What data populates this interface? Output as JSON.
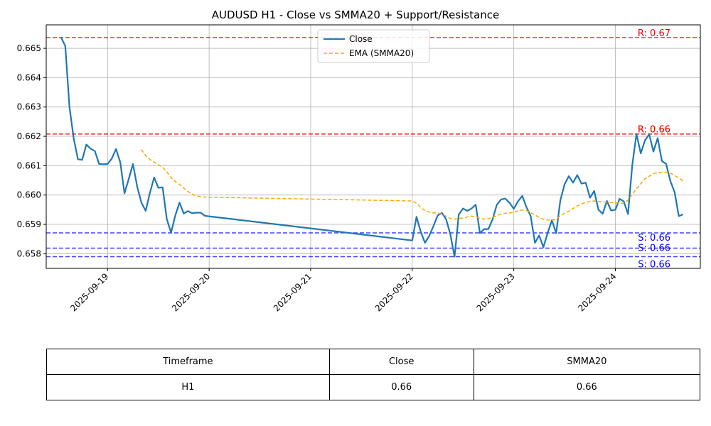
{
  "chart_data": {
    "type": "line",
    "title": "AUDUSD H1 - Close vs SMMA20 + Support/Resistance",
    "xlabel": "",
    "ylabel": "",
    "ylim": [
      0.6575,
      0.6658
    ],
    "x_ticks": [
      "2025-09-19",
      "2025-09-20",
      "2025-09-21",
      "2025-09-22",
      "2025-09-23",
      "2025-09-24"
    ],
    "y_ticks": [
      "0.658",
      "0.659",
      "0.660",
      "0.661",
      "0.662",
      "0.663",
      "0.664",
      "0.665"
    ],
    "grid": true,
    "legend_position": "upper-center",
    "series": [
      {
        "name": "Close",
        "color": "#1f77b4",
        "style": "solid",
        "x": [
          "2025-09-18 13:00",
          "2025-09-18 14:00",
          "2025-09-18 15:00",
          "2025-09-18 16:00",
          "2025-09-18 17:00",
          "2025-09-18 18:00",
          "2025-09-18 19:00",
          "2025-09-18 20:00",
          "2025-09-18 21:00",
          "2025-09-18 22:00",
          "2025-09-18 23:00",
          "2025-09-19 00:00",
          "2025-09-19 01:00",
          "2025-09-19 02:00",
          "2025-09-19 03:00",
          "2025-09-19 04:00",
          "2025-09-19 05:00",
          "2025-09-19 06:00",
          "2025-09-19 07:00",
          "2025-09-19 08:00",
          "2025-09-19 09:00",
          "2025-09-19 10:00",
          "2025-09-19 11:00",
          "2025-09-19 12:00",
          "2025-09-19 13:00",
          "2025-09-19 14:00",
          "2025-09-19 15:00",
          "2025-09-19 16:00",
          "2025-09-19 17:00",
          "2025-09-19 18:00",
          "2025-09-19 19:00",
          "2025-09-19 20:00",
          "2025-09-19 21:00",
          "2025-09-19 22:00",
          "2025-09-19 23:00",
          "2025-09-22 00:00",
          "2025-09-22 01:00",
          "2025-09-22 02:00",
          "2025-09-22 03:00",
          "2025-09-22 04:00",
          "2025-09-22 05:00",
          "2025-09-22 06:00",
          "2025-09-22 07:00",
          "2025-09-22 08:00",
          "2025-09-22 09:00",
          "2025-09-22 10:00",
          "2025-09-22 11:00",
          "2025-09-22 12:00",
          "2025-09-22 13:00",
          "2025-09-22 14:00",
          "2025-09-22 15:00",
          "2025-09-22 16:00",
          "2025-09-22 17:00",
          "2025-09-22 18:00",
          "2025-09-22 19:00",
          "2025-09-22 20:00",
          "2025-09-22 21:00",
          "2025-09-22 22:00",
          "2025-09-22 23:00",
          "2025-09-23 00:00",
          "2025-09-23 01:00",
          "2025-09-23 02:00",
          "2025-09-23 03:00",
          "2025-09-23 04:00",
          "2025-09-23 05:00",
          "2025-09-23 06:00",
          "2025-09-23 07:00",
          "2025-09-23 08:00",
          "2025-09-23 09:00",
          "2025-09-23 10:00",
          "2025-09-23 11:00",
          "2025-09-23 12:00",
          "2025-09-23 13:00",
          "2025-09-23 14:00",
          "2025-09-23 15:00",
          "2025-09-23 16:00",
          "2025-09-23 17:00",
          "2025-09-23 18:00",
          "2025-09-23 19:00",
          "2025-09-23 20:00",
          "2025-09-23 21:00",
          "2025-09-23 22:00",
          "2025-09-23 23:00",
          "2025-09-24 00:00",
          "2025-09-24 01:00",
          "2025-09-24 02:00",
          "2025-09-24 03:00",
          "2025-09-24 04:00",
          "2025-09-24 05:00",
          "2025-09-24 06:00",
          "2025-09-24 07:00",
          "2025-09-24 08:00",
          "2025-09-24 09:00",
          "2025-09-24 10:00",
          "2025-09-24 11:00",
          "2025-09-24 12:00",
          "2025-09-24 13:00",
          "2025-09-24 14:00",
          "2025-09-24 15:00",
          "2025-09-24 16:00"
        ],
        "values": [
          0.66538,
          0.66508,
          0.663,
          0.66192,
          0.66122,
          0.6612,
          0.66172,
          0.66158,
          0.6615,
          0.66106,
          0.66105,
          0.66106,
          0.66124,
          0.66157,
          0.66111,
          0.66006,
          0.66055,
          0.66106,
          0.66028,
          0.65974,
          0.65946,
          0.66007,
          0.6606,
          0.66025,
          0.66026,
          0.65918,
          0.65872,
          0.6593,
          0.65974,
          0.65937,
          0.65945,
          0.65938,
          0.6594,
          0.6594,
          0.65929,
          0.65845,
          0.65926,
          0.65875,
          0.65837,
          0.6586,
          0.65894,
          0.6593,
          0.65939,
          0.65918,
          0.65866,
          0.6579,
          0.65934,
          0.65954,
          0.65946,
          0.65954,
          0.65967,
          0.6587,
          0.65884,
          0.65884,
          0.65918,
          0.65967,
          0.65985,
          0.65988,
          0.65973,
          0.65953,
          0.65979,
          0.65997,
          0.65958,
          0.65928,
          0.65837,
          0.65862,
          0.65822,
          0.65871,
          0.65914,
          0.6587,
          0.65982,
          0.66037,
          0.66064,
          0.66042,
          0.66068,
          0.66039,
          0.66042,
          0.65991,
          0.66014,
          0.6595,
          0.65936,
          0.6598,
          0.65947,
          0.6595,
          0.65987,
          0.65978,
          0.65935,
          0.66103,
          0.66208,
          0.66142,
          0.66186,
          0.66207,
          0.66148,
          0.66194,
          0.66116,
          0.66106,
          0.66048,
          0.6601,
          0.65928,
          0.65934
        ]
      },
      {
        "name": "EMA (SMMA20)",
        "color": "#ffa500",
        "style": "dashed",
        "x": [
          "2025-09-19 08:00",
          "2025-09-19 09:00",
          "2025-09-19 10:00",
          "2025-09-19 11:00",
          "2025-09-19 12:00",
          "2025-09-19 13:00",
          "2025-09-19 14:00",
          "2025-09-19 15:00",
          "2025-09-19 16:00",
          "2025-09-19 17:00",
          "2025-09-19 18:00",
          "2025-09-19 19:00",
          "2025-09-19 20:00",
          "2025-09-19 21:00",
          "2025-09-19 22:00",
          "2025-09-19 23:00",
          "2025-09-22 00:00",
          "2025-09-22 01:00",
          "2025-09-22 02:00",
          "2025-09-22 03:00",
          "2025-09-22 04:00",
          "2025-09-22 05:00",
          "2025-09-22 06:00",
          "2025-09-22 07:00",
          "2025-09-22 08:00",
          "2025-09-22 09:00",
          "2025-09-22 10:00",
          "2025-09-22 11:00",
          "2025-09-22 12:00",
          "2025-09-22 13:00",
          "2025-09-22 14:00",
          "2025-09-22 15:00",
          "2025-09-22 16:00",
          "2025-09-22 17:00",
          "2025-09-22 18:00",
          "2025-09-22 19:00",
          "2025-09-22 20:00",
          "2025-09-22 21:00",
          "2025-09-22 22:00",
          "2025-09-22 23:00",
          "2025-09-23 00:00",
          "2025-09-23 01:00",
          "2025-09-23 02:00",
          "2025-09-23 03:00",
          "2025-09-23 04:00",
          "2025-09-23 05:00",
          "2025-09-23 06:00",
          "2025-09-23 07:00",
          "2025-09-23 08:00",
          "2025-09-23 09:00",
          "2025-09-23 10:00",
          "2025-09-23 11:00",
          "2025-09-23 12:00",
          "2025-09-23 13:00",
          "2025-09-23 14:00",
          "2025-09-23 15:00",
          "2025-09-23 16:00",
          "2025-09-23 17:00",
          "2025-09-23 18:00",
          "2025-09-23 19:00",
          "2025-09-23 20:00",
          "2025-09-23 21:00",
          "2025-09-23 22:00",
          "2025-09-23 23:00",
          "2025-09-24 00:00",
          "2025-09-24 01:00",
          "2025-09-24 02:00",
          "2025-09-24 03:00",
          "2025-09-24 04:00",
          "2025-09-24 05:00",
          "2025-09-24 06:00",
          "2025-09-24 07:00",
          "2025-09-24 08:00",
          "2025-09-24 09:00",
          "2025-09-24 10:00",
          "2025-09-24 11:00",
          "2025-09-24 12:00",
          "2025-09-24 13:00",
          "2025-09-24 14:00",
          "2025-09-24 15:00",
          "2025-09-24 16:00"
        ],
        "values": [
          0.66155,
          0.66134,
          0.66121,
          0.66112,
          0.66103,
          0.66095,
          0.66079,
          0.6606,
          0.66046,
          0.66036,
          0.66024,
          0.66012,
          0.66003,
          0.65996,
          0.65995,
          0.65993,
          0.6598,
          0.65972,
          0.65958,
          0.65947,
          0.65942,
          0.65939,
          0.65939,
          0.65935,
          0.65928,
          0.6592,
          0.65918,
          0.6592,
          0.65922,
          0.65925,
          0.65928,
          0.65926,
          0.65921,
          0.65918,
          0.65919,
          0.65924,
          0.6593,
          0.65935,
          0.65938,
          0.65939,
          0.65941,
          0.65946,
          0.65949,
          0.65947,
          0.6594,
          0.65932,
          0.65924,
          0.65917,
          0.65915,
          0.65914,
          0.65917,
          0.65929,
          0.65938,
          0.65945,
          0.65954,
          0.65963,
          0.6597,
          0.65975,
          0.65978,
          0.6598,
          0.65978,
          0.65977,
          0.65976,
          0.65975,
          0.65973,
          0.65973,
          0.65971,
          0.65982,
          0.66003,
          0.66021,
          0.66039,
          0.66055,
          0.66064,
          0.66073,
          0.66076,
          0.66078,
          0.66078,
          0.66075,
          0.66067,
          0.66058,
          0.66048
        ]
      }
    ],
    "resistance_lines": [
      {
        "value": 0.66537,
        "label": "R: 0.67",
        "color": "#ff0000"
      },
      {
        "value": 0.66208,
        "label": "R: 0.66",
        "color": "#ff0000"
      },
      {
        "value": 0.66208,
        "label": "R: 0.66",
        "color": "#ff0000"
      }
    ],
    "support_lines": [
      {
        "value": 0.65871,
        "label": "S: 0.66",
        "color": "#0000ff"
      },
      {
        "value": 0.65819,
        "label": "S: 0.66",
        "color": "#0000ff"
      },
      {
        "value": 0.6579,
        "label": "S: 0.66",
        "color": "#0000ff"
      }
    ]
  },
  "table": {
    "headers": [
      "Timeframe",
      "Close",
      "SMMA20"
    ],
    "rows": [
      [
        "H1",
        "0.66",
        "0.66"
      ]
    ]
  }
}
